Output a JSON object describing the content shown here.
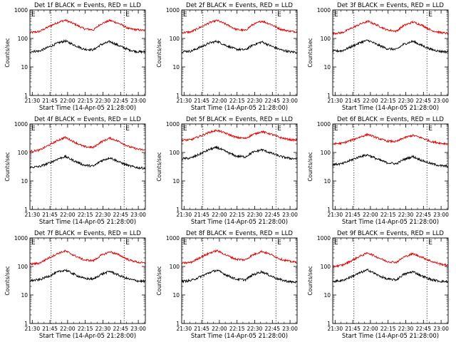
{
  "colors": {
    "events": "#000000",
    "lld": "#dd0000",
    "axes": "#000000",
    "background": "#ffffff"
  },
  "chart_data": [
    {
      "type": "line",
      "title": "Det 1f BLACK = Events, RED = LLD",
      "xlabel": "Start Time (14-Apr-05 21:28:00)",
      "ylabel": "Counts/sec",
      "y_scale": "log",
      "ylim": [
        1,
        1000
      ],
      "y_ticks": [
        "1",
        "10",
        "100",
        "1000"
      ],
      "xlim": [
        "21:28",
        "23:06"
      ],
      "x_ticks": [
        "21:30",
        "21:45",
        "22:00",
        "22:15",
        "22:30",
        "22:45",
        "23:00"
      ],
      "markers": [
        {
          "label": "E",
          "time": "21:28"
        },
        {
          "label": "E",
          "time": "22:48"
        }
      ],
      "dashed_vlines": [
        "21:46",
        "22:48"
      ],
      "series": [
        {
          "color": "lld",
          "x": [
            "21:28",
            "21:36",
            "21:44",
            "21:52",
            "21:58",
            "22:06",
            "22:14",
            "22:22",
            "22:28",
            "22:36",
            "22:44",
            "22:52",
            "23:00",
            "23:06"
          ],
          "values": [
            160,
            175,
            260,
            370,
            440,
            320,
            220,
            200,
            320,
            430,
            330,
            220,
            200,
            190
          ]
        },
        {
          "color": "events",
          "x": [
            "21:28",
            "21:36",
            "21:44",
            "21:52",
            "21:58",
            "22:06",
            "22:14",
            "22:22",
            "22:28",
            "22:36",
            "22:44",
            "22:52",
            "23:00",
            "23:06"
          ],
          "values": [
            35,
            36,
            50,
            70,
            82,
            58,
            42,
            40,
            60,
            78,
            55,
            40,
            34,
            34
          ]
        }
      ]
    },
    {
      "type": "line",
      "title": "Det 2f BLACK = Events, RED = LLD",
      "xlabel": "Start Time (14-Apr-05 21:28:00)",
      "ylabel": "Counts/sec",
      "y_scale": "log",
      "ylim": [
        1,
        1000
      ],
      "y_ticks": [
        "1",
        "10",
        "100",
        "1000"
      ],
      "xlim": [
        "21:28",
        "23:06"
      ],
      "x_ticks": [
        "21:30",
        "21:45",
        "22:00",
        "22:15",
        "22:30",
        "22:45",
        "23:00"
      ],
      "markers": [
        {
          "label": "E",
          "time": "21:28"
        },
        {
          "label": "E",
          "time": "22:48"
        }
      ],
      "dashed_vlines": [
        "21:46",
        "22:48"
      ],
      "series": [
        {
          "color": "lld",
          "x": [
            "21:28",
            "21:36",
            "21:44",
            "21:52",
            "21:58",
            "22:06",
            "22:14",
            "22:22",
            "22:28",
            "22:36",
            "22:44",
            "22:52",
            "23:00",
            "23:06"
          ],
          "values": [
            160,
            170,
            250,
            360,
            430,
            310,
            210,
            190,
            300,
            410,
            310,
            210,
            180,
            170
          ]
        },
        {
          "color": "events",
          "x": [
            "21:28",
            "21:36",
            "21:44",
            "21:52",
            "21:58",
            "22:06",
            "22:14",
            "22:22",
            "22:28",
            "22:36",
            "22:44",
            "22:52",
            "23:00",
            "23:06"
          ],
          "values": [
            35,
            36,
            50,
            70,
            80,
            56,
            42,
            40,
            58,
            76,
            54,
            40,
            34,
            33
          ]
        }
      ]
    },
    {
      "type": "line",
      "title": "Det 3f BLACK = Events, RED = LLD",
      "xlabel": "Start Time (14-Apr-05 21:28:00)",
      "ylabel": "Counts/sec",
      "y_scale": "log",
      "ylim": [
        1,
        1000
      ],
      "y_ticks": [
        "1",
        "10",
        "100",
        "1000"
      ],
      "xlim": [
        "21:28",
        "23:06"
      ],
      "x_ticks": [
        "21:30",
        "21:45",
        "22:00",
        "22:15",
        "22:30",
        "22:45",
        "23:00"
      ],
      "markers": [
        {
          "label": "E",
          "time": "21:28"
        },
        {
          "label": "E",
          "time": "22:48"
        }
      ],
      "dashed_vlines": [
        "21:46",
        "22:48"
      ],
      "series": [
        {
          "color": "lld",
          "x": [
            "21:28",
            "21:36",
            "21:44",
            "21:52",
            "21:58",
            "22:06",
            "22:14",
            "22:22",
            "22:28",
            "22:36",
            "22:44",
            "22:52",
            "23:00",
            "23:06"
          ],
          "values": [
            150,
            160,
            230,
            330,
            400,
            290,
            200,
            180,
            280,
            380,
            290,
            190,
            160,
            150
          ]
        },
        {
          "color": "events",
          "x": [
            "21:28",
            "21:36",
            "21:44",
            "21:52",
            "21:58",
            "22:06",
            "22:14",
            "22:22",
            "22:28",
            "22:36",
            "22:44",
            "22:52",
            "23:00",
            "23:06"
          ],
          "values": [
            36,
            37,
            52,
            74,
            86,
            60,
            44,
            41,
            62,
            80,
            56,
            41,
            35,
            34
          ]
        }
      ]
    },
    {
      "type": "line",
      "title": "Det 4f BLACK = Events, RED = LLD",
      "xlabel": "Start Time (14-Apr-05 21:28:00)",
      "ylabel": "Counts/sec",
      "y_scale": "log",
      "ylim": [
        1,
        1000
      ],
      "y_ticks": [
        "1",
        "10",
        "100",
        "1000"
      ],
      "xlim": [
        "21:28",
        "23:06"
      ],
      "x_ticks": [
        "21:30",
        "21:45",
        "22:00",
        "22:15",
        "22:30",
        "22:45",
        "23:00"
      ],
      "markers": [
        {
          "label": "E",
          "time": "21:28"
        },
        {
          "label": "E",
          "time": "22:48"
        }
      ],
      "dashed_vlines": [
        "21:46",
        "22:48"
      ],
      "series": [
        {
          "color": "lld",
          "x": [
            "21:28",
            "21:36",
            "21:44",
            "21:52",
            "21:58",
            "22:06",
            "22:14",
            "22:22",
            "22:28",
            "22:36",
            "22:44",
            "22:52",
            "23:00",
            "23:06"
          ],
          "values": [
            110,
            120,
            180,
            270,
            340,
            230,
            160,
            150,
            230,
            320,
            240,
            160,
            130,
            120
          ]
        },
        {
          "color": "events",
          "x": [
            "21:28",
            "21:36",
            "21:44",
            "21:52",
            "21:58",
            "22:06",
            "22:14",
            "22:22",
            "22:28",
            "22:36",
            "22:44",
            "22:52",
            "23:00",
            "23:06"
          ],
          "values": [
            30,
            32,
            42,
            60,
            72,
            50,
            36,
            33,
            50,
            66,
            46,
            34,
            29,
            28
          ]
        }
      ]
    },
    {
      "type": "line",
      "title": "Det 5f BLACK = Events, RED = LLD",
      "xlabel": "Start Time (14-Apr-05 21:28:00)",
      "ylabel": "Counts/sec",
      "y_scale": "log",
      "ylim": [
        1,
        1000
      ],
      "y_ticks": [
        "1",
        "10",
        "100",
        "1000"
      ],
      "xlim": [
        "21:28",
        "23:06"
      ],
      "x_ticks": [
        "21:30",
        "21:45",
        "22:00",
        "22:15",
        "22:30",
        "22:45",
        "23:00"
      ],
      "markers": [
        {
          "label": "E",
          "time": "21:28"
        },
        {
          "label": "E",
          "time": "22:48"
        }
      ],
      "dashed_vlines": [
        "21:46",
        "22:48"
      ],
      "series": [
        {
          "color": "lld",
          "x": [
            "21:28",
            "21:36",
            "21:44",
            "21:52",
            "21:58",
            "22:06",
            "22:14",
            "22:22",
            "22:28",
            "22:36",
            "22:44",
            "22:52",
            "23:00",
            "23:06"
          ],
          "values": [
            270,
            280,
            380,
            520,
            600,
            460,
            340,
            310,
            420,
            540,
            440,
            330,
            280,
            270
          ]
        },
        {
          "color": "events",
          "x": [
            "21:28",
            "21:36",
            "21:44",
            "21:52",
            "21:58",
            "22:06",
            "22:14",
            "22:22",
            "22:28",
            "22:36",
            "22:44",
            "22:52",
            "23:00",
            "23:06"
          ],
          "values": [
            60,
            64,
            90,
            130,
            150,
            105,
            75,
            70,
            100,
            125,
            95,
            72,
            62,
            60
          ]
        }
      ]
    },
    {
      "type": "line",
      "title": "Det 6f BLACK = Events, RED = LLD",
      "xlabel": "Start Time (14-Apr-05 21:28:00)",
      "ylabel": "Counts/sec",
      "y_scale": "log",
      "ylim": [
        1,
        1000
      ],
      "y_ticks": [
        "1",
        "10",
        "100",
        "1000"
      ],
      "xlim": [
        "21:28",
        "23:06"
      ],
      "x_ticks": [
        "21:30",
        "21:45",
        "22:00",
        "22:15",
        "22:30",
        "22:45",
        "23:00"
      ],
      "markers": [
        {
          "label": "E",
          "time": "21:28"
        },
        {
          "label": "E",
          "time": "22:48"
        }
      ],
      "dashed_vlines": [
        "21:46",
        "22:48"
      ],
      "series": [
        {
          "color": "lld",
          "x": [
            "21:28",
            "21:36",
            "21:44",
            "21:52",
            "21:58",
            "22:06",
            "22:14",
            "22:22",
            "22:28",
            "22:36",
            "22:44",
            "22:52",
            "23:00",
            "23:06"
          ],
          "values": [
            200,
            210,
            270,
            360,
            430,
            320,
            250,
            240,
            320,
            400,
            320,
            240,
            210,
            200
          ]
        },
        {
          "color": "events",
          "x": [
            "21:28",
            "21:36",
            "21:44",
            "21:52",
            "21:58",
            "22:06",
            "22:14",
            "22:22",
            "22:28",
            "22:36",
            "22:44",
            "22:52",
            "23:00",
            "23:06"
          ],
          "values": [
            38,
            40,
            55,
            74,
            82,
            58,
            44,
            40,
            56,
            72,
            52,
            40,
            34,
            33
          ]
        }
      ]
    },
    {
      "type": "line",
      "title": "Det 7f BLACK = Events, RED = LLD",
      "xlabel": "Start Time (14-Apr-05 21:28:00)",
      "ylabel": "Counts/sec",
      "y_scale": "log",
      "ylim": [
        1,
        1000
      ],
      "y_ticks": [
        "1",
        "10",
        "100",
        "1000"
      ],
      "xlim": [
        "21:28",
        "23:06"
      ],
      "x_ticks": [
        "21:30",
        "21:45",
        "22:00",
        "22:15",
        "22:30",
        "22:45",
        "23:00"
      ],
      "markers": [
        {
          "label": "E",
          "time": "21:28"
        },
        {
          "label": "E",
          "time": "22:48"
        }
      ],
      "dashed_vlines": [
        "21:46",
        "22:48"
      ],
      "series": [
        {
          "color": "lld",
          "x": [
            "21:28",
            "21:36",
            "21:44",
            "21:52",
            "21:58",
            "22:06",
            "22:14",
            "22:22",
            "22:28",
            "22:36",
            "22:44",
            "22:52",
            "23:00",
            "23:06"
          ],
          "values": [
            120,
            130,
            200,
            290,
            350,
            240,
            170,
            160,
            240,
            330,
            250,
            170,
            140,
            130
          ]
        },
        {
          "color": "events",
          "x": [
            "21:28",
            "21:36",
            "21:44",
            "21:52",
            "21:58",
            "22:06",
            "22:14",
            "22:22",
            "22:28",
            "22:36",
            "22:44",
            "22:52",
            "23:00",
            "23:06"
          ],
          "values": [
            32,
            34,
            46,
            64,
            76,
            52,
            38,
            36,
            52,
            68,
            48,
            36,
            31,
            30
          ]
        }
      ]
    },
    {
      "type": "line",
      "title": "Det 8f BLACK = Events, RED = LLD",
      "xlabel": "Start Time (14-Apr-05 21:28:00)",
      "ylabel": "Counts/sec",
      "y_scale": "log",
      "ylim": [
        1,
        1000
      ],
      "y_ticks": [
        "1",
        "10",
        "100",
        "1000"
      ],
      "xlim": [
        "21:28",
        "23:06"
      ],
      "x_ticks": [
        "21:30",
        "21:45",
        "22:00",
        "22:15",
        "22:30",
        "22:45",
        "23:00"
      ],
      "markers": [
        {
          "label": "E",
          "time": "21:28"
        },
        {
          "label": "E",
          "time": "22:48"
        }
      ],
      "dashed_vlines": [
        "21:46",
        "22:48"
      ],
      "series": [
        {
          "color": "lld",
          "x": [
            "21:28",
            "21:36",
            "21:44",
            "21:52",
            "21:58",
            "22:06",
            "22:14",
            "22:22",
            "22:28",
            "22:36",
            "22:44",
            "22:52",
            "23:00",
            "23:06"
          ],
          "values": [
            130,
            140,
            210,
            300,
            360,
            250,
            180,
            170,
            250,
            340,
            260,
            180,
            150,
            140
          ]
        },
        {
          "color": "events",
          "x": [
            "21:28",
            "21:36",
            "21:44",
            "21:52",
            "21:58",
            "22:06",
            "22:14",
            "22:22",
            "22:28",
            "22:36",
            "22:44",
            "22:52",
            "23:00",
            "23:06"
          ],
          "values": [
            30,
            32,
            44,
            62,
            74,
            50,
            36,
            34,
            50,
            66,
            46,
            34,
            29,
            28
          ]
        }
      ]
    },
    {
      "type": "line",
      "title": "Det 9f BLACK = Events, RED = LLD",
      "xlabel": "Start Time (14-Apr-05 21:28:00)",
      "ylabel": "Counts/sec",
      "y_scale": "log",
      "ylim": [
        1,
        1000
      ],
      "y_ticks": [
        "1",
        "10",
        "100",
        "1000"
      ],
      "xlim": [
        "21:28",
        "23:06"
      ],
      "x_ticks": [
        "21:30",
        "21:45",
        "22:00",
        "22:15",
        "22:30",
        "22:45",
        "23:00"
      ],
      "markers": [
        {
          "label": "E",
          "time": "21:28"
        },
        {
          "label": "E",
          "time": "22:48"
        }
      ],
      "dashed_vlines": [
        "21:46",
        "22:48"
      ],
      "series": [
        {
          "color": "lld",
          "x": [
            "21:28",
            "21:36",
            "21:44",
            "21:52",
            "21:58",
            "22:06",
            "22:14",
            "22:22",
            "22:28",
            "22:36",
            "22:44",
            "22:52",
            "23:00",
            "23:06"
          ],
          "values": [
            100,
            110,
            160,
            240,
            300,
            210,
            150,
            140,
            210,
            280,
            210,
            150,
            120,
            110
          ]
        },
        {
          "color": "events",
          "x": [
            "21:28",
            "21:36",
            "21:44",
            "21:52",
            "21:58",
            "22:06",
            "22:14",
            "22:22",
            "22:28",
            "22:36",
            "22:44",
            "22:52",
            "23:00",
            "23:06"
          ],
          "values": [
            30,
            32,
            44,
            62,
            76,
            50,
            36,
            34,
            52,
            66,
            46,
            34,
            30,
            29
          ]
        }
      ]
    }
  ]
}
